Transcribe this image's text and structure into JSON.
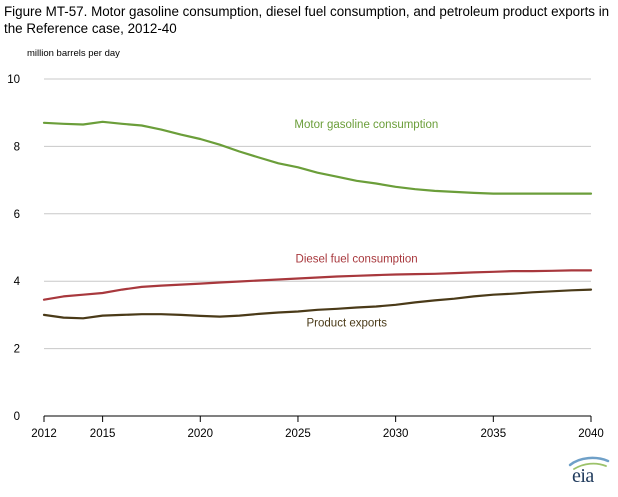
{
  "header": {
    "title": "Figure MT-57. Motor gasoline consumption, diesel fuel consumption, and petroleum product exports in the Reference case, 2012-40"
  },
  "chart_data": {
    "type": "line",
    "title": "Figure MT-57. Motor gasoline consumption, diesel fuel consumption, and petroleum product exports in the Reference case, 2012-40",
    "ylabel": "million barrels  per day",
    "xlabel": "",
    "xlim": [
      2012,
      2040
    ],
    "ylim": [
      0,
      10
    ],
    "xticks": [
      2012,
      2015,
      2020,
      2025,
      2030,
      2035,
      2040
    ],
    "yticks": [
      0,
      2,
      4,
      6,
      8,
      10
    ],
    "x": [
      2012,
      2013,
      2014,
      2015,
      2016,
      2017,
      2018,
      2019,
      2020,
      2021,
      2022,
      2023,
      2024,
      2025,
      2026,
      2027,
      2028,
      2029,
      2030,
      2031,
      2032,
      2033,
      2034,
      2035,
      2036,
      2037,
      2038,
      2039,
      2040
    ],
    "series": [
      {
        "name": "Motor gasoline consumption",
        "color": "#6b9e3a",
        "values": [
          8.7,
          8.67,
          8.65,
          8.73,
          8.67,
          8.62,
          8.5,
          8.35,
          8.22,
          8.05,
          7.85,
          7.67,
          7.5,
          7.38,
          7.22,
          7.1,
          6.98,
          6.9,
          6.8,
          6.73,
          6.68,
          6.65,
          6.62,
          6.6,
          6.6,
          6.6,
          6.6,
          6.6,
          6.6
        ]
      },
      {
        "name": "Diesel fuel consumption",
        "color": "#a8383d",
        "values": [
          3.45,
          3.55,
          3.6,
          3.65,
          3.75,
          3.83,
          3.87,
          3.9,
          3.93,
          3.96,
          3.99,
          4.02,
          4.05,
          4.08,
          4.11,
          4.14,
          4.16,
          4.18,
          4.2,
          4.21,
          4.22,
          4.24,
          4.26,
          4.28,
          4.3,
          4.3,
          4.31,
          4.32,
          4.32
        ]
      },
      {
        "name": "Product exports",
        "color": "#4a3a18",
        "values": [
          3.0,
          2.92,
          2.9,
          2.98,
          3.0,
          3.02,
          3.02,
          3.0,
          2.97,
          2.95,
          2.98,
          3.03,
          3.07,
          3.1,
          3.15,
          3.18,
          3.22,
          3.25,
          3.3,
          3.37,
          3.43,
          3.48,
          3.55,
          3.6,
          3.63,
          3.67,
          3.7,
          3.73,
          3.75
        ]
      }
    ],
    "annotations": [
      {
        "text": "Motor gasoline consumption",
        "series": 0,
        "x": 2028.5,
        "y": 8.55
      },
      {
        "text": "Diesel fuel consumption",
        "series": 1,
        "x": 2028,
        "y": 4.55
      },
      {
        "text": "Product exports",
        "series": 2,
        "x": 2027.5,
        "y": 2.65
      }
    ],
    "grid": true,
    "legend": "none"
  },
  "footer": {
    "logo_text": "eia"
  }
}
